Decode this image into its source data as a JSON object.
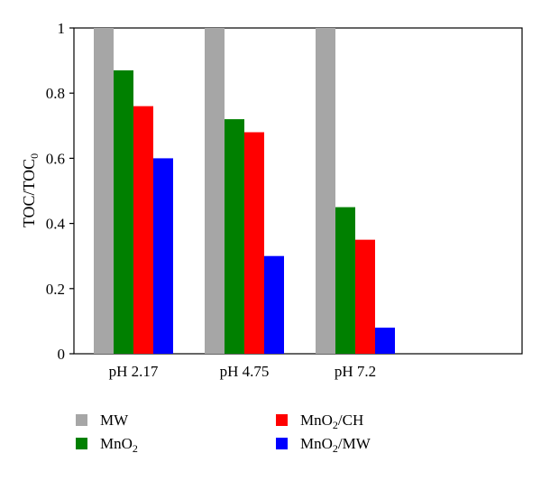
{
  "chart_data": {
    "type": "bar",
    "title": "",
    "xlabel": "",
    "ylabel": "TOC/TOC",
    "ylabel_subscript": "0",
    "categories": [
      "pH 2.17",
      "pH 4.75",
      "pH 7.2"
    ],
    "ylim": [
      0,
      1
    ],
    "yticks": [
      {
        "value": 0,
        "label": "0"
      },
      {
        "value": 0.2,
        "label": "0.2"
      },
      {
        "value": 0.4,
        "label": "0.4"
      },
      {
        "value": 0.6,
        "label": "0.6"
      },
      {
        "value": 0.8,
        "label": "0.8"
      },
      {
        "value": 1,
        "label": "1"
      }
    ],
    "grid": false,
    "legend_position": "bottom",
    "series": [
      {
        "name": "MW",
        "name_main": "MW",
        "name_sub": "",
        "name_tail": "",
        "color": "#a6a6a6",
        "values": [
          1.0,
          1.0,
          1.0
        ]
      },
      {
        "name": "MnO2",
        "name_main": "MnO",
        "name_sub": "2",
        "name_tail": "",
        "color": "#008000",
        "values": [
          0.87,
          0.72,
          0.45
        ]
      },
      {
        "name": "MnO2/CH",
        "name_main": "MnO",
        "name_sub": "2",
        "name_tail": "/CH",
        "color": "#ff0000",
        "values": [
          0.76,
          0.68,
          0.35
        ]
      },
      {
        "name": "MnO2/MW",
        "name_main": "MnO",
        "name_sub": "2",
        "name_tail": "/MW",
        "color": "#0000ff",
        "values": [
          0.6,
          0.3,
          0.08
        ]
      }
    ]
  }
}
